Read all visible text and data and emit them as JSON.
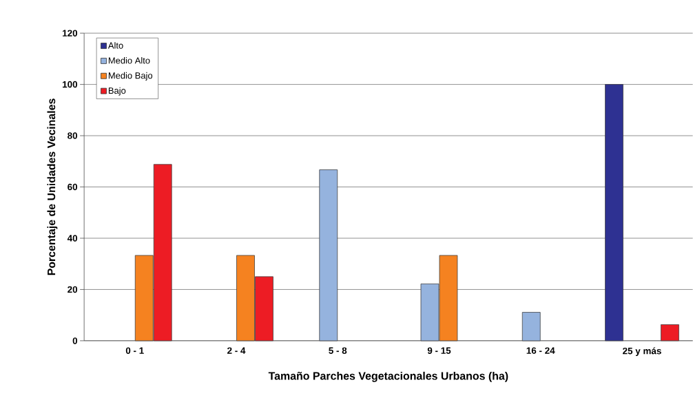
{
  "chart_data": {
    "type": "bar",
    "xlabel": "Tamaño Parches Vegetacionales Urbanos (ha)",
    "ylabel": "Porcentaje de Unidades Vecinales",
    "categories": [
      "0 - 1",
      "2 - 4",
      "5 - 8",
      "9 - 15",
      "16 - 24",
      "25 y más"
    ],
    "series": [
      {
        "name": "Alto",
        "color": "#2e3192",
        "values": [
          null,
          null,
          null,
          null,
          null,
          100
        ]
      },
      {
        "name": "Medio Alto",
        "color": "#95b3de",
        "values": [
          null,
          null,
          66.7,
          22.2,
          11.1,
          null
        ]
      },
      {
        "name": "Medio Bajo",
        "color": "#f58220",
        "values": [
          33.3,
          33.3,
          null,
          33.3,
          null,
          null
        ]
      },
      {
        "name": "Bajo",
        "color": "#ed1c24",
        "values": [
          68.8,
          25,
          null,
          null,
          null,
          6.3
        ]
      }
    ],
    "ylim": [
      0,
      120
    ],
    "yticks": [
      0,
      20,
      40,
      60,
      80,
      100,
      120
    ],
    "grid": "y",
    "legend": "top left"
  }
}
